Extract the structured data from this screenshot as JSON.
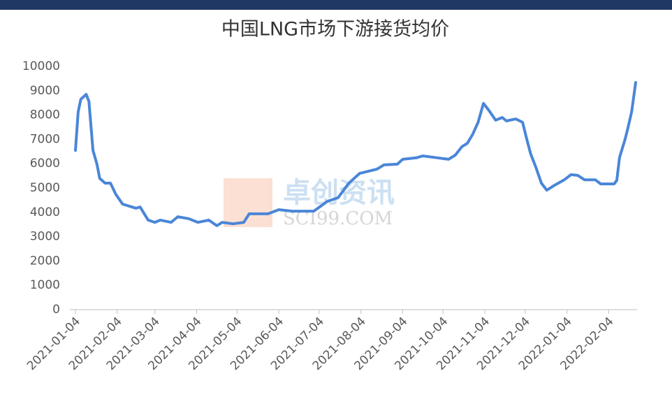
{
  "chart_data": {
    "type": "line",
    "title": "中国LNG市场下游接货均价",
    "watermark": {
      "name": "卓创资讯",
      "url": "SCI99.COM"
    },
    "xlim": [
      "2021-01-04",
      "2022-02-24"
    ],
    "xticks": [
      "2021-01-04",
      "2021-02-04",
      "2021-03-04",
      "2021-04-04",
      "2021-05-04",
      "2021-06-04",
      "2021-07-04",
      "2021-08-04",
      "2021-09-04",
      "2021-10-04",
      "2021-11-04",
      "2021-12-04",
      "2022-01-04",
      "2022-02-04"
    ],
    "ylim": [
      0,
      10000
    ],
    "yticks": [
      0,
      1000,
      2000,
      3000,
      4000,
      5000,
      6000,
      7000,
      8000,
      9000,
      10000
    ],
    "grid": false,
    "x": [
      "2021-01-04",
      "2021-01-06",
      "2021-01-08",
      "2021-01-12",
      "2021-01-14",
      "2021-01-17",
      "2021-01-20",
      "2021-01-22",
      "2021-01-26",
      "2021-01-30",
      "2021-02-03",
      "2021-02-08",
      "2021-02-18",
      "2021-02-21",
      "2021-02-27",
      "2021-03-04",
      "2021-03-08",
      "2021-03-16",
      "2021-03-21",
      "2021-03-29",
      "2021-04-05",
      "2021-04-13",
      "2021-04-19",
      "2021-04-23",
      "2021-05-01",
      "2021-05-09",
      "2021-05-13",
      "2021-05-27",
      "2021-06-04",
      "2021-06-14",
      "2021-06-30",
      "2021-07-05",
      "2021-07-10",
      "2021-07-18",
      "2021-07-26",
      "2021-08-03",
      "2021-08-16",
      "2021-08-21",
      "2021-08-31",
      "2021-09-04",
      "2021-09-14",
      "2021-09-19",
      "2021-09-30",
      "2021-10-08",
      "2021-10-13",
      "2021-10-18",
      "2021-10-22",
      "2021-10-26",
      "2021-10-30",
      "2021-11-03",
      "2021-11-07",
      "2021-11-12",
      "2021-11-17",
      "2021-11-20",
      "2021-11-27",
      "2021-12-02",
      "2021-12-05",
      "2021-12-08",
      "2021-12-12",
      "2021-12-16",
      "2021-12-20",
      "2021-12-25",
      "2022-01-02",
      "2022-01-07",
      "2022-01-12",
      "2022-01-17",
      "2022-01-25",
      "2022-01-29",
      "2022-02-08",
      "2022-02-10",
      "2022-02-12",
      "2022-02-16",
      "2022-02-18",
      "2022-02-21",
      "2022-02-24"
    ],
    "series": [
      {
        "color": "#4a86d8",
        "values": [
          6550,
          8130,
          8650,
          8850,
          8560,
          6550,
          5980,
          5400,
          5200,
          5200,
          4740,
          4340,
          4170,
          4220,
          3680,
          3590,
          3680,
          3590,
          3820,
          3740,
          3590,
          3680,
          3450,
          3590,
          3530,
          3590,
          3940,
          3940,
          4110,
          4050,
          4050,
          4250,
          4450,
          4600,
          5200,
          5600,
          5780,
          5950,
          5980,
          6180,
          6240,
          6320,
          6240,
          6180,
          6350,
          6700,
          6840,
          7210,
          7700,
          8480,
          8190,
          7790,
          7900,
          7760,
          7840,
          7700,
          7040,
          6410,
          5840,
          5200,
          4910,
          5090,
          5340,
          5550,
          5520,
          5340,
          5340,
          5170,
          5170,
          5320,
          6260,
          6980,
          7410,
          8130,
          9340
        ]
      }
    ]
  }
}
